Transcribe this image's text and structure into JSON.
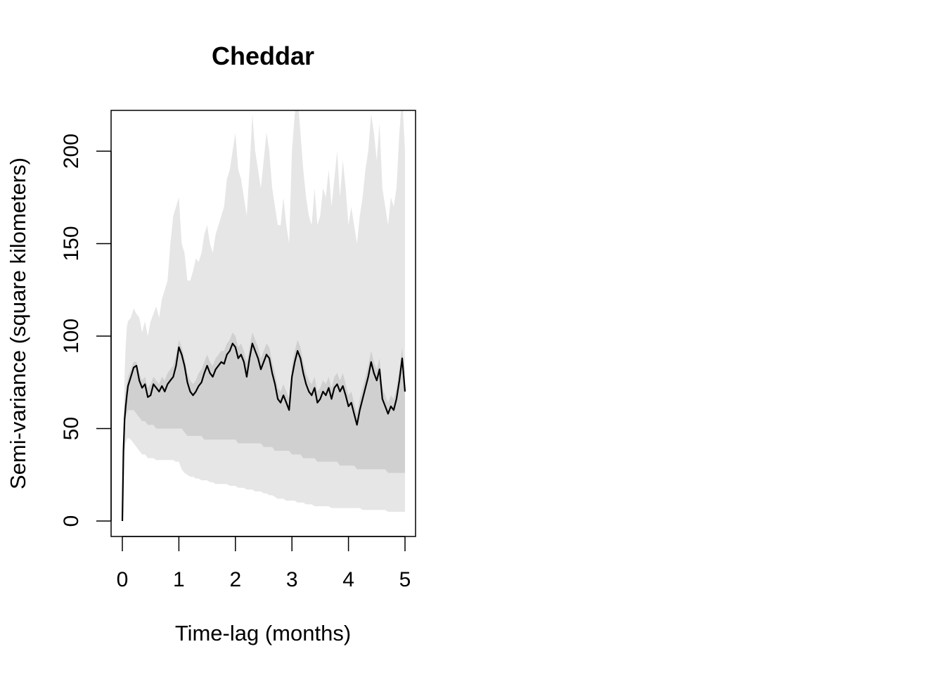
{
  "chart_data": {
    "type": "line",
    "title": "Cheddar",
    "xlabel": "Time-lag (months)",
    "ylabel": "Semi-variance (square kilometers)",
    "xlim": [
      0,
      5
    ],
    "ylim": [
      0,
      220
    ],
    "x_ticks": [
      0,
      1,
      2,
      3,
      4,
      5
    ],
    "y_ticks": [
      0,
      50,
      100,
      150,
      200
    ],
    "grid": false,
    "legend": "none",
    "colors": {
      "line": "#000000",
      "outer_band": "#e6e6e6",
      "inner_band": "#d0d0d0"
    },
    "series": [
      {
        "x": [
          0,
          0.02,
          0.04,
          0.06,
          0.08,
          0.1,
          0.15,
          0.2,
          0.25,
          0.3,
          0.35,
          0.4,
          0.45,
          0.5,
          0.55,
          0.6,
          0.65,
          0.7,
          0.75,
          0.8,
          0.85,
          0.9,
          0.95,
          1.0,
          1.05,
          1.1,
          1.15,
          1.2,
          1.25,
          1.3,
          1.35,
          1.4,
          1.45,
          1.5,
          1.55,
          1.6,
          1.65,
          1.7,
          1.75,
          1.8,
          1.85,
          1.9,
          1.95,
          2.0,
          2.05,
          2.1,
          2.15,
          2.2,
          2.25,
          2.3,
          2.35,
          2.4,
          2.45,
          2.5,
          2.55,
          2.6,
          2.65,
          2.7,
          2.75,
          2.8,
          2.85,
          2.9,
          2.95,
          3.0,
          3.05,
          3.1,
          3.15,
          3.2,
          3.25,
          3.3,
          3.35,
          3.4,
          3.45,
          3.5,
          3.55,
          3.6,
          3.65,
          3.7,
          3.75,
          3.8,
          3.85,
          3.9,
          3.95,
          4.0,
          4.05,
          4.1,
          4.15,
          4.2,
          4.25,
          4.3,
          4.35,
          4.4,
          4.45,
          4.5,
          4.55,
          4.6,
          4.65,
          4.7,
          4.75,
          4.8,
          4.85,
          4.9,
          4.95,
          5.0
        ],
        "y": [
          0,
          38,
          55,
          62,
          68,
          73,
          78,
          83,
          84,
          76,
          72,
          74,
          67,
          68,
          74,
          72,
          70,
          73,
          70,
          74,
          76,
          78,
          84,
          94,
          90,
          84,
          75,
          70,
          68,
          70,
          73,
          75,
          80,
          84,
          80,
          78,
          82,
          84,
          86,
          85,
          90,
          92,
          96,
          94,
          88,
          90,
          86,
          78,
          88,
          96,
          92,
          88,
          82,
          86,
          90,
          88,
          80,
          74,
          66,
          64,
          68,
          64,
          60,
          78,
          86,
          92,
          88,
          80,
          74,
          70,
          68,
          72,
          64,
          66,
          70,
          68,
          72,
          66,
          72,
          74,
          70,
          73,
          68,
          62,
          64,
          58,
          52,
          60,
          66,
          72,
          78,
          86,
          80,
          76,
          82,
          66,
          62,
          58,
          62,
          60,
          66,
          76,
          88,
          70
        ]
      }
    ],
    "bands": {
      "outer_upper": [
        0,
        50,
        80,
        95,
        105,
        108,
        110,
        115,
        112,
        110,
        102,
        108,
        100,
        108,
        112,
        116,
        110,
        120,
        125,
        130,
        150,
        165,
        170,
        175,
        150,
        145,
        130,
        130,
        135,
        142,
        140,
        145,
        155,
        160,
        150,
        145,
        155,
        160,
        165,
        170,
        185,
        190,
        200,
        210,
        190,
        185,
        175,
        165,
        190,
        220,
        200,
        190,
        180,
        195,
        210,
        200,
        180,
        170,
        160,
        160,
        175,
        160,
        150,
        200,
        220,
        230,
        210,
        190,
        175,
        165,
        160,
        180,
        160,
        165,
        180,
        175,
        190,
        170,
        185,
        200,
        175,
        195,
        180,
        160,
        170,
        160,
        150,
        165,
        175,
        190,
        200,
        220,
        210,
        195,
        215,
        180,
        170,
        160,
        175,
        170,
        180,
        210,
        230,
        200
      ],
      "inner_upper": [
        0,
        45,
        62,
        70,
        74,
        78,
        82,
        86,
        86,
        80,
        76,
        78,
        72,
        74,
        78,
        76,
        74,
        78,
        76,
        80,
        82,
        84,
        90,
        98,
        94,
        88,
        80,
        76,
        74,
        76,
        80,
        82,
        86,
        90,
        86,
        84,
        88,
        90,
        92,
        92,
        96,
        98,
        102,
        100,
        94,
        96,
        92,
        86,
        94,
        102,
        98,
        94,
        88,
        92,
        96,
        94,
        86,
        80,
        72,
        70,
        74,
        70,
        66,
        84,
        92,
        98,
        94,
        86,
        80,
        76,
        74,
        78,
        70,
        72,
        76,
        74,
        78,
        72,
        78,
        80,
        76,
        80,
        74,
        68,
        70,
        64,
        58,
        66,
        72,
        78,
        84,
        92,
        86,
        82,
        88,
        72,
        68,
        64,
        68,
        66,
        72,
        82,
        94,
        76
      ],
      "inner_lower": [
        0,
        35,
        52,
        56,
        58,
        60,
        60,
        60,
        58,
        56,
        54,
        54,
        52,
        52,
        52,
        50,
        50,
        50,
        50,
        50,
        50,
        50,
        50,
        50,
        50,
        48,
        46,
        46,
        46,
        46,
        46,
        46,
        44,
        44,
        44,
        44,
        44,
        44,
        44,
        44,
        44,
        44,
        44,
        44,
        42,
        42,
        42,
        42,
        42,
        42,
        42,
        42,
        42,
        40,
        40,
        40,
        40,
        38,
        38,
        38,
        38,
        38,
        38,
        36,
        36,
        36,
        36,
        34,
        34,
        34,
        34,
        34,
        32,
        32,
        32,
        32,
        32,
        32,
        32,
        32,
        30,
        30,
        30,
        30,
        30,
        30,
        28,
        28,
        28,
        28,
        28,
        28,
        28,
        28,
        28,
        28,
        28,
        26,
        26,
        26,
        26,
        26,
        26,
        26
      ],
      "outer_lower": [
        0,
        25,
        38,
        42,
        44,
        45,
        44,
        42,
        40,
        38,
        36,
        36,
        34,
        34,
        34,
        33,
        33,
        33,
        33,
        33,
        33,
        33,
        32,
        32,
        28,
        26,
        25,
        24,
        24,
        23,
        23,
        22,
        22,
        22,
        21,
        21,
        20,
        20,
        20,
        20,
        20,
        19,
        19,
        19,
        18,
        18,
        18,
        17,
        17,
        17,
        16,
        16,
        16,
        15,
        15,
        14,
        14,
        13,
        12,
        12,
        12,
        11,
        11,
        11,
        11,
        10,
        10,
        10,
        9,
        9,
        9,
        8,
        8,
        8,
        8,
        8,
        8,
        7,
        7,
        7,
        7,
        7,
        7,
        7,
        7,
        7,
        7,
        7,
        6,
        6,
        6,
        6,
        6,
        6,
        6,
        6,
        6,
        5,
        5,
        5,
        5,
        5,
        5,
        5
      ]
    }
  }
}
